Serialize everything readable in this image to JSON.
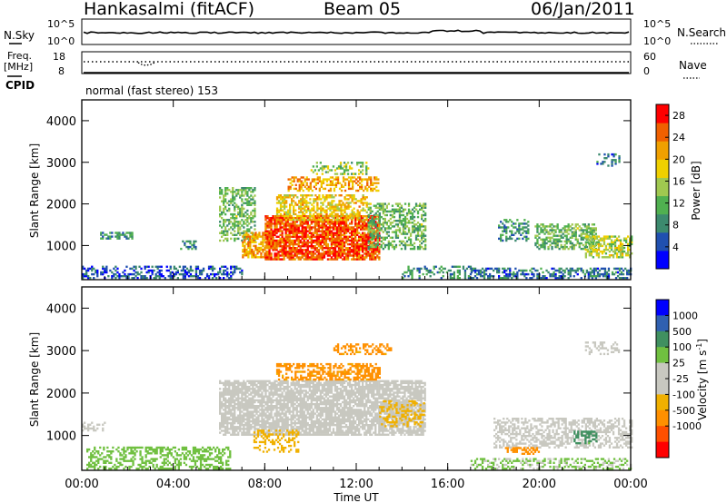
{
  "header": {
    "station": "Hankasalmi (fitACF)",
    "beam": "Beam 05",
    "date": "06/Jan/2011"
  },
  "top_panels": {
    "nsky": {
      "left_label": "N.Sky",
      "right_label": "N.Search",
      "ymax_label": "10^5",
      "ymin_label": "10^0",
      "right_ymax_label": "10^5",
      "right_ymin_label": "10^0"
    },
    "freq": {
      "left_label": "Freq.",
      "unit_label": "[MHz]",
      "ymax_label": "18",
      "ymin_label": "8",
      "right_label": "Nave",
      "right_ymax_label": "60",
      "right_ymin_label": "0"
    },
    "cpid": {
      "label": "CPID",
      "text": "normal (fast stereo) 153"
    }
  },
  "colors": {
    "power_scale": [
      "#0000ff",
      "#2050b0",
      "#3c8a6e",
      "#50b050",
      "#a0c850",
      "#f0d000",
      "#f0a000",
      "#f06000",
      "#ff0000"
    ],
    "velocity_scale": [
      "#ff0000",
      "#ff5000",
      "#ff9000",
      "#f0b000",
      "#c8c8c0",
      "#c8c8c0",
      "#70c040",
      "#409060",
      "#3060b0",
      "#0000ff"
    ],
    "velocity_gray": "#c8c8c0"
  },
  "chart_data": [
    {
      "type": "heatmap",
      "name": "power",
      "ylabel": "Slant Range [km]",
      "xlabel": "Time UT",
      "x_tick_labels": [
        "00:00",
        "04:00",
        "08:00",
        "12:00",
        "16:00",
        "20:00",
        "00:00"
      ],
      "y_tick_labels": [
        "1000",
        "2000",
        "3000",
        "4000"
      ],
      "xlim": [
        0,
        24
      ],
      "ylim": [
        180,
        4500
      ],
      "colorbar": {
        "label": "Power [dB]",
        "ticks": [
          "4",
          "8",
          "12",
          "16",
          "20",
          "24",
          "28"
        ],
        "range": [
          0,
          30
        ]
      },
      "regions": [
        {
          "t": [
            0.0,
            7.0
          ],
          "r": [
            200,
            500
          ],
          "level": 4,
          "density": 0.45
        },
        {
          "t": [
            0.8,
            2.2
          ],
          "r": [
            1150,
            1300
          ],
          "level": 8,
          "density": 0.55
        },
        {
          "t": [
            4.3,
            5.0
          ],
          "r": [
            900,
            1100
          ],
          "level": 8,
          "density": 0.5
        },
        {
          "t": [
            6.0,
            7.6
          ],
          "r": [
            1100,
            2400
          ],
          "level": 12,
          "density": 0.5
        },
        {
          "t": [
            7.0,
            8.2
          ],
          "r": [
            700,
            1300
          ],
          "level": 22,
          "density": 0.65
        },
        {
          "t": [
            8.0,
            13.0
          ],
          "r": [
            650,
            1700
          ],
          "level": 27,
          "density": 0.8
        },
        {
          "t": [
            8.5,
            12.5
          ],
          "r": [
            1600,
            2200
          ],
          "level": 20,
          "density": 0.55
        },
        {
          "t": [
            9.0,
            13.0
          ],
          "r": [
            2300,
            2650
          ],
          "level": 22,
          "density": 0.5
        },
        {
          "t": [
            10.0,
            12.5
          ],
          "r": [
            2700,
            3000
          ],
          "level": 14,
          "density": 0.35
        },
        {
          "t": [
            12.5,
            15.0
          ],
          "r": [
            900,
            2000
          ],
          "level": 12,
          "density": 0.5
        },
        {
          "t": [
            14.0,
            17.0
          ],
          "r": [
            200,
            500
          ],
          "level": 8,
          "density": 0.35
        },
        {
          "t": [
            17.0,
            24.0
          ],
          "r": [
            200,
            450
          ],
          "level": 6,
          "density": 0.5
        },
        {
          "t": [
            18.2,
            19.5
          ],
          "r": [
            1100,
            1600
          ],
          "level": 8,
          "density": 0.4
        },
        {
          "t": [
            19.8,
            22.5
          ],
          "r": [
            900,
            1500
          ],
          "level": 12,
          "density": 0.55
        },
        {
          "t": [
            22.0,
            24.0
          ],
          "r": [
            700,
            1200
          ],
          "level": 16,
          "density": 0.55
        },
        {
          "t": [
            22.5,
            23.5
          ],
          "r": [
            2900,
            3200
          ],
          "level": 6,
          "density": 0.35
        }
      ]
    },
    {
      "type": "heatmap",
      "name": "velocity",
      "ylabel": "Slant Range [km]",
      "xlabel": "Time UT",
      "x_tick_labels": [
        "00:00",
        "04:00",
        "08:00",
        "12:00",
        "16:00",
        "20:00",
        "00:00"
      ],
      "y_tick_labels": [
        "1000",
        "2000",
        "3000",
        "4000"
      ],
      "xlim": [
        0,
        24
      ],
      "ylim": [
        180,
        4500
      ],
      "colorbar": {
        "label": "Velocity [m s",
        "label_sup": "-1",
        "label_end": "]",
        "ticks": [
          "1000",
          "500",
          "100",
          "25",
          "-25",
          "-100",
          "-500",
          "-1000"
        ]
      },
      "regions": [
        {
          "t": [
            0.0,
            1.0
          ],
          "r": [
            1100,
            1300
          ],
          "level": 0,
          "density": 0.35
        },
        {
          "t": [
            0.2,
            6.5
          ],
          "r": [
            200,
            700
          ],
          "level": 50,
          "density": 0.45
        },
        {
          "t": [
            6.0,
            15.0
          ],
          "r": [
            1000,
            2300
          ],
          "level": 0,
          "density": 0.78
        },
        {
          "t": [
            8.5,
            13.0
          ],
          "r": [
            2300,
            2700
          ],
          "level": -150,
          "density": 0.55
        },
        {
          "t": [
            7.5,
            9.5
          ],
          "r": [
            600,
            1100
          ],
          "level": -60,
          "density": 0.35
        },
        {
          "t": [
            13.0,
            15.0
          ],
          "r": [
            1200,
            1800
          ],
          "level": -60,
          "density": 0.3
        },
        {
          "t": [
            11.0,
            13.5
          ],
          "r": [
            2900,
            3150
          ],
          "level": -150,
          "density": 0.4
        },
        {
          "t": [
            18.0,
            24.0
          ],
          "r": [
            700,
            1400
          ],
          "level": 0,
          "density": 0.5
        },
        {
          "t": [
            18.5,
            20.0
          ],
          "r": [
            550,
            700
          ],
          "level": -300,
          "density": 0.55
        },
        {
          "t": [
            21.5,
            22.5
          ],
          "r": [
            800,
            1100
          ],
          "level": 150,
          "density": 0.45
        },
        {
          "t": [
            22.0,
            23.5
          ],
          "r": [
            2900,
            3200
          ],
          "level": 0,
          "density": 0.35
        },
        {
          "t": [
            17.0,
            24.0
          ],
          "r": [
            200,
            450
          ],
          "level": 30,
          "density": 0.4
        }
      ]
    }
  ],
  "timeline_labels": [
    "00:00",
    "04:00",
    "08:00",
    "12:00",
    "16:00",
    "20:00",
    "00:00"
  ],
  "x_axis_title": "Time UT"
}
